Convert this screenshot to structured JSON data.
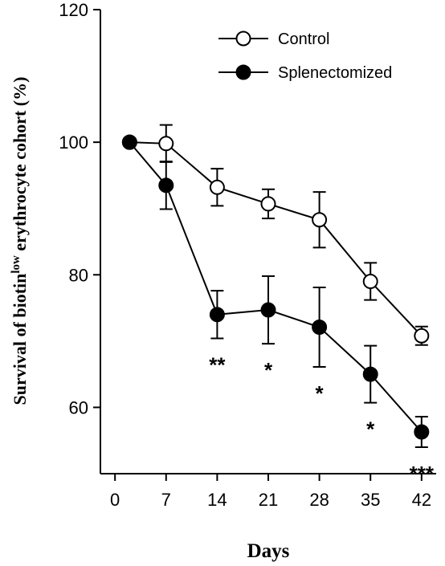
{
  "chart_data": {
    "type": "line",
    "title": "",
    "xlabel": "Days",
    "ylabel": {
      "prefix": "Survival of biotin",
      "superscript": "low",
      "suffix": " erythrocyte cohort (%)"
    },
    "xlim": [
      -2,
      44
    ],
    "ylim": [
      50,
      120
    ],
    "x_ticks": [
      0,
      7,
      14,
      21,
      28,
      35,
      42
    ],
    "y_ticks": [
      60,
      80,
      100,
      120
    ],
    "grid": false,
    "legend_position": "top-right",
    "series": [
      {
        "name": "Control",
        "marker": "open-circle",
        "x": [
          2,
          7,
          14,
          21,
          28,
          35,
          42
        ],
        "y": [
          100.0,
          99.8,
          93.2,
          90.7,
          88.3,
          79.0,
          70.8
        ],
        "error": [
          0,
          2.8,
          2.8,
          2.2,
          4.2,
          2.8,
          1.4
        ]
      },
      {
        "name": "Splenectomized",
        "marker": "filled-circle",
        "x": [
          2,
          7,
          14,
          21,
          28,
          35,
          42
        ],
        "y": [
          100.0,
          93.5,
          74.0,
          74.7,
          72.1,
          65.0,
          56.3
        ],
        "error": [
          0,
          3.6,
          3.6,
          5.1,
          6.0,
          4.3,
          2.3
        ]
      }
    ],
    "annotations": [
      {
        "x": 14,
        "text": "**"
      },
      {
        "x": 21,
        "text": "*"
      },
      {
        "x": 28,
        "text": "*"
      },
      {
        "x": 35,
        "text": "*"
      },
      {
        "x": 42,
        "text": "***"
      }
    ]
  }
}
